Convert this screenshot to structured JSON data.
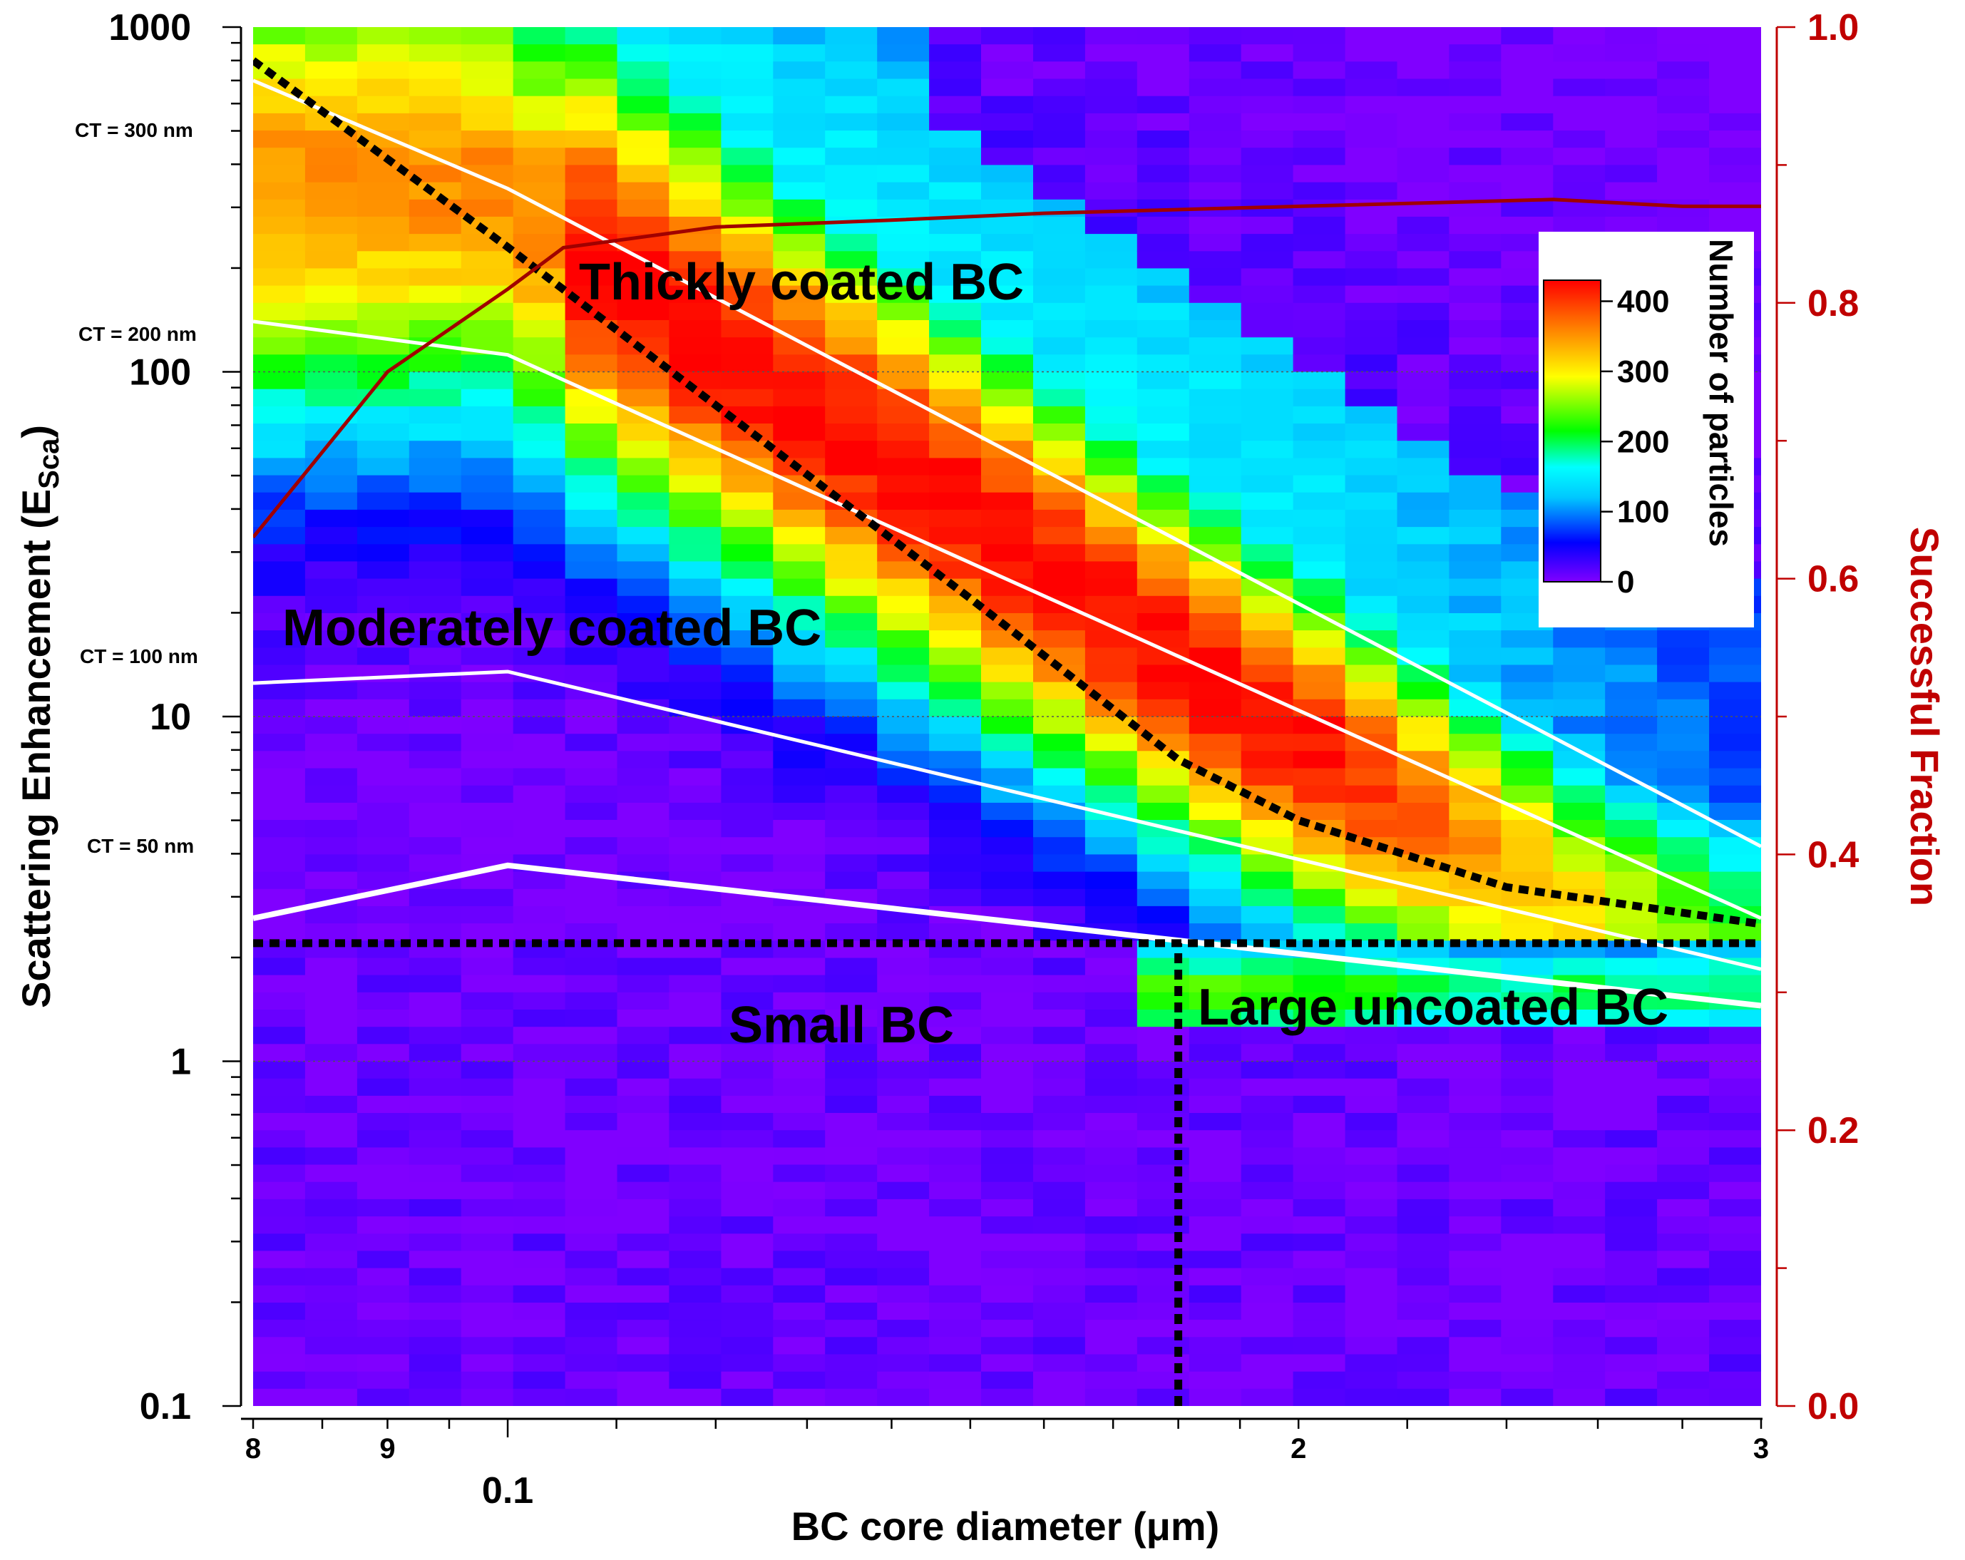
{
  "chart_data": {
    "type": "heatmap",
    "xlabel": "BC core diameter (μm)",
    "ylabel": "Scattering Enhancement (E",
    "ylabel_sub": "Sca",
    "ylabel_close": ")",
    "y2label": "Successful Fraction",
    "x_scale": "log",
    "y_scale": "log",
    "xlim": [
      0.08,
      0.3
    ],
    "ylim": [
      0.1,
      1000
    ],
    "y2lim": [
      0.0,
      1.0
    ],
    "x_ticks": [
      {
        "value": 0.08,
        "label": "8",
        "major": false
      },
      {
        "value": 0.09,
        "label": "9",
        "major": false
      },
      {
        "value": 0.1,
        "label": "0.1",
        "major": true
      },
      {
        "value": 0.2,
        "label": "2",
        "major": false
      },
      {
        "value": 0.3,
        "label": "3",
        "major": false
      }
    ],
    "y_ticks": [
      {
        "value": 0.1,
        "label": "0.1"
      },
      {
        "value": 1,
        "label": "1"
      },
      {
        "value": 10,
        "label": "10"
      },
      {
        "value": 100,
        "label": "100"
      },
      {
        "value": 1000,
        "label": "1000"
      }
    ],
    "y2_ticks": [
      {
        "value": 0.0,
        "label": "0.0"
      },
      {
        "value": 0.2,
        "label": "0.2"
      },
      {
        "value": 0.4,
        "label": "0.4"
      },
      {
        "value": 0.6,
        "label": "0.6"
      },
      {
        "value": 0.8,
        "label": "0.8"
      },
      {
        "value": 1.0,
        "label": "1.0"
      }
    ],
    "colorbar": {
      "title": "Number of particles",
      "range": [
        0,
        430
      ],
      "ticks": [
        {
          "value": 0,
          "label": "0"
        },
        {
          "value": 100,
          "label": "100"
        },
        {
          "value": 200,
          "label": "200"
        },
        {
          "value": 300,
          "label": "300"
        },
        {
          "value": 400,
          "label": "400"
        }
      ],
      "colors": [
        "#8000ff",
        "#0000ff",
        "#00c8ff",
        "#00ffff",
        "#00ff00",
        "#ffff00",
        "#ff8000",
        "#ff0000"
      ]
    },
    "heatmap_grid": {
      "x_bins": 29,
      "y_bins": 80
    },
    "series": [
      {
        "name": "CT = 300 nm",
        "x": [
          0.08,
          0.1,
          0.3
        ],
        "y": [
          700,
          340,
          4.2
        ]
      },
      {
        "name": "CT = 200 nm",
        "x": [
          0.08,
          0.1,
          0.3
        ],
        "y": [
          140,
          112,
          2.6
        ]
      },
      {
        "name": "CT = 100 nm",
        "x": [
          0.08,
          0.1,
          0.3
        ],
        "y": [
          12.5,
          13.5,
          1.85
        ]
      },
      {
        "name": "CT = 50 nm",
        "x": [
          0.08,
          0.1,
          0.3
        ],
        "y": [
          2.6,
          3.7,
          1.45
        ]
      },
      {
        "name": "Successful Fraction",
        "x": [
          0.08,
          0.09,
          0.1,
          0.105,
          0.12,
          0.14,
          0.16,
          0.2,
          0.25,
          0.28,
          0.3
        ],
        "y2": [
          0.63,
          0.75,
          0.81,
          0.84,
          0.855,
          0.86,
          0.865,
          0.87,
          0.875,
          0.87,
          0.87
        ]
      },
      {
        "name": "Thick/moderate boundary",
        "x": [
          0.08,
          0.1,
          0.12,
          0.15,
          0.18,
          0.2,
          0.24,
          0.3
        ],
        "y": [
          800,
          230,
          80,
          22,
          7.5,
          5,
          3.2,
          2.5
        ]
      },
      {
        "name": "Small/coated boundary",
        "x": [
          0.08,
          0.3
        ],
        "y": [
          2.2,
          2.2
        ]
      },
      {
        "name": "Small/large boundary",
        "x": [
          0.18,
          0.18
        ],
        "y": [
          0.1,
          2.2
        ]
      }
    ],
    "annotations": {
      "ct_300": "CT = 300 nm",
      "ct_200": "CT = 200 nm",
      "ct_100": "CT = 100 nm",
      "ct_50": "CT = 50 nm",
      "thick": "Thickly coated BC",
      "moderate": "Moderately coated BC",
      "small": "Small BC",
      "large": "Large uncoated BC"
    },
    "grid": "dotted horizontal lines at decades",
    "legend": "colorbar top-right inside plot"
  }
}
